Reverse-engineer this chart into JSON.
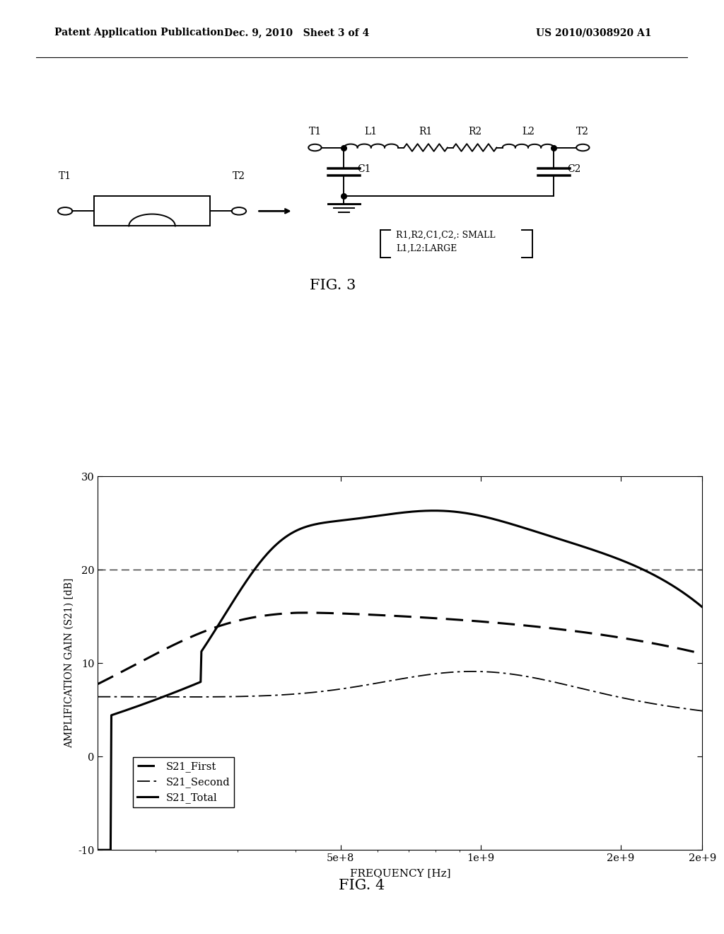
{
  "header_left": "Patent Application Publication",
  "header_mid": "Dec. 9, 2010   Sheet 3 of 4",
  "header_right": "US 2010/0308920 A1",
  "fig3_label": "FIG. 3",
  "fig4_label": "FIG. 4",
  "ylabel": "AMPLIFICATION GAIN (S21) [dB]",
  "xlabel": "FREQUENCY [Hz]",
  "yticks": [
    -10,
    0,
    10,
    20,
    30
  ],
  "ylim": [
    -10,
    30
  ],
  "legend_entries": [
    "S21_First",
    "S21_Second",
    "S21_Total"
  ],
  "background": "#ffffff",
  "dashed_line_y": 20,
  "note_text1": "R1,R2,C1,C2,: SMALL",
  "note_text2": "L1,L2:LARGE"
}
